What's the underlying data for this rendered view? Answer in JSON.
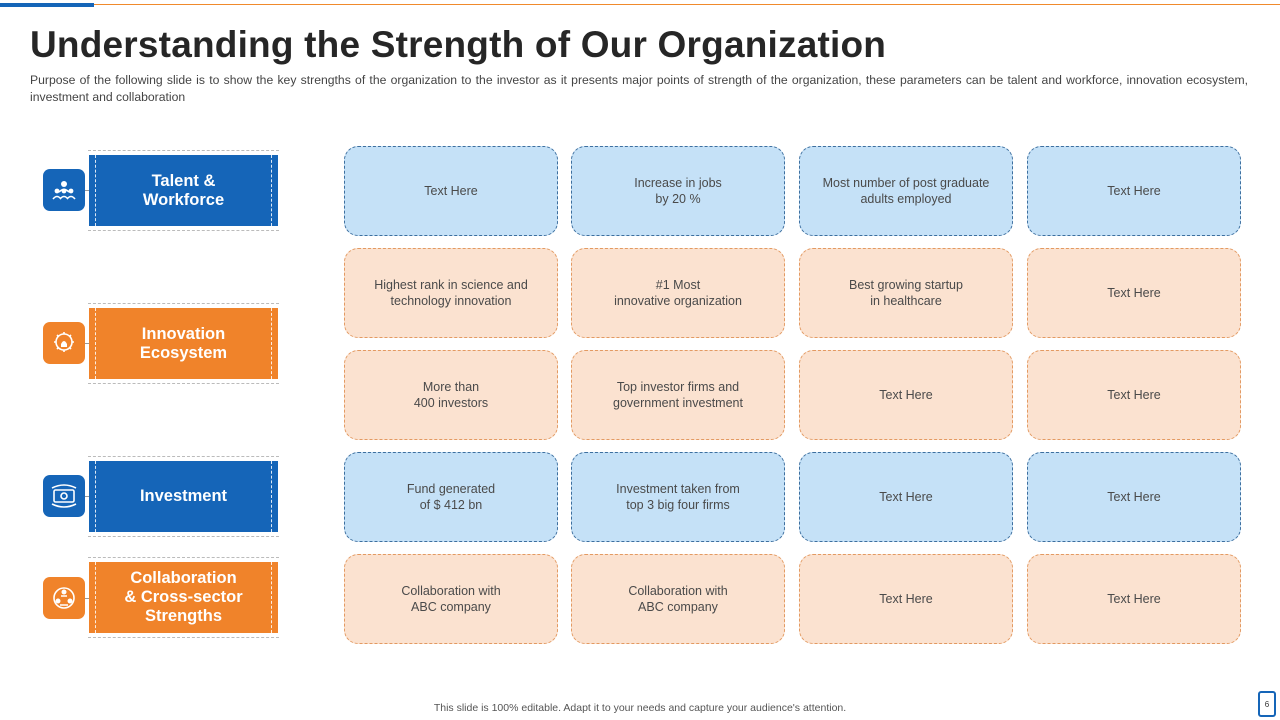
{
  "slide": {
    "title": "Understanding the Strength of Our Organization",
    "subtitle": "Purpose of the following slide is to show the key strengths of the organization to the investor as it presents major points of strength of the organization, these parameters can be talent and workforce, innovation ecosystem, investment and collaboration",
    "footer": "This slide is 100% editable. Adapt it to your needs and capture your audience's attention.",
    "page_number": "6"
  },
  "colors": {
    "blue": "#1565b8",
    "orange": "#f0832a",
    "cell_blue": "#c5e1f7",
    "cell_orange": "#fbe2d0"
  },
  "categories": [
    {
      "label": "Talent &\nWorkforce",
      "icon": "people-group-icon",
      "color": "blue"
    },
    {
      "label": "Innovation\nEcosystem",
      "icon": "gear-lightbulb-icon",
      "color": "orange"
    },
    {
      "label": "Investment",
      "icon": "money-cash-icon",
      "color": "blue"
    },
    {
      "label": "Collaboration\n& Cross-sector\nStrengths",
      "icon": "team-network-icon",
      "color": "orange"
    }
  ],
  "grid": [
    {
      "color": "blue",
      "cells": [
        "Text Here",
        "Increase in jobs\nby 20 %",
        "Most number of post graduate\nadults employed",
        "Text Here"
      ]
    },
    {
      "color": "orange",
      "cells": [
        "Highest rank in science and\ntechnology innovation",
        "#1 Most\ninnovative organization",
        "Best growing startup\nin healthcare",
        "Text Here"
      ]
    },
    {
      "color": "orange",
      "cells": [
        "More than\n400 investors",
        "Top investor firms and\ngovernment investment",
        "Text Here",
        "Text Here"
      ]
    },
    {
      "color": "blue",
      "cells": [
        "Fund generated\nof $ 412 bn",
        "Investment taken from\ntop 3 big four firms",
        "Text Here",
        "Text Here"
      ]
    },
    {
      "color": "orange",
      "cells": [
        "Collaboration with\nABC company",
        "Collaboration with\nABC company",
        "Text Here",
        "Text Here"
      ]
    }
  ]
}
